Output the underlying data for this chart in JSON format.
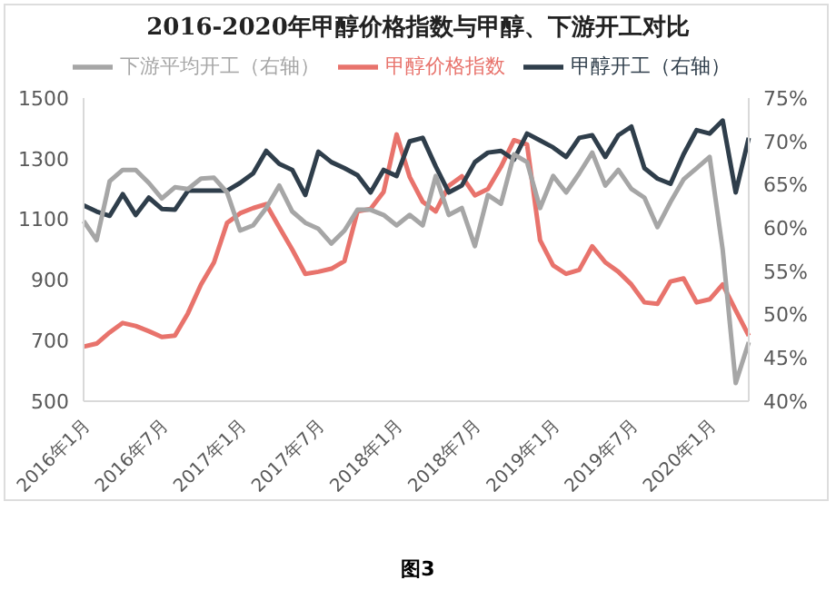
{
  "chart_data": {
    "type": "line",
    "title": "2016-2020年甲醇价格指数与甲醇、下游开工对比",
    "annotations": [
      "图3"
    ],
    "categories": [
      "2016年1月",
      null,
      null,
      null,
      null,
      null,
      "2016年7月",
      null,
      null,
      null,
      null,
      null,
      "2017年1月",
      null,
      null,
      null,
      null,
      null,
      "2017年7月",
      null,
      null,
      null,
      null,
      null,
      "2018年1月",
      null,
      null,
      null,
      null,
      null,
      "2018年7月",
      null,
      null,
      null,
      null,
      null,
      "2019年1月",
      null,
      null,
      null,
      null,
      null,
      "2019年7月",
      null,
      null,
      null,
      null,
      null,
      "2020年1月",
      null,
      null,
      null
    ],
    "series": [
      {
        "name": "甲醇价格指数",
        "color": "#e8736c",
        "values": [
          680,
          690,
          727,
          758,
          748,
          731,
          712,
          716,
          790,
          885,
          958,
          1088,
          1120,
          1137,
          1150,
          1074,
          1000,
          920,
          927,
          937,
          962,
          1126,
          1134,
          1190,
          1380,
          1240,
          1158,
          1126,
          1210,
          1242,
          1179,
          1200,
          1273,
          1361,
          1347,
          1031,
          948,
          920,
          933,
          1011,
          958,
          927,
          885,
          826,
          821,
          895,
          905,
          826,
          836,
          885,
          800,
          716
        ]
      },
      {
        "name": "甲醇开工（右轴）",
        "color": "#2f3e4b",
        "axis": "y2",
        "values": [
          62.6,
          61.9,
          61.4,
          63.9,
          61.5,
          63.5,
          62.2,
          62.1,
          64.3,
          64.3,
          64.3,
          64.3,
          65.2,
          66.3,
          68.9,
          67.4,
          66.7,
          63.8,
          68.8,
          67.6,
          66.9,
          66.1,
          64.1,
          66.7,
          66.0,
          70.0,
          70.4,
          67.1,
          64.1,
          64.9,
          67.6,
          68.7,
          68.9,
          67.9,
          70.9,
          70.1,
          69.3,
          68.2,
          70.4,
          70.7,
          68.2,
          70.7,
          71.7,
          66.9,
          65.7,
          65.1,
          68.5,
          71.3,
          70.9,
          72.4,
          64.1,
          70.4
        ]
      },
      {
        "name": "下游平均开工（右轴）",
        "color": "#a6a6a6",
        "axis": "y2",
        "values": [
          60.8,
          58.6,
          65.4,
          66.7,
          66.7,
          65.2,
          63.4,
          64.7,
          64.5,
          65.7,
          65.8,
          64.1,
          59.7,
          60.3,
          62.3,
          64.9,
          61.9,
          60.6,
          59.9,
          58.2,
          59.7,
          62.1,
          62.1,
          61.5,
          60.3,
          61.5,
          60.3,
          66.0,
          61.5,
          62.3,
          57.9,
          63.8,
          62.8,
          68.5,
          67.6,
          62.3,
          66.0,
          64.1,
          66.3,
          68.7,
          64.9,
          66.7,
          64.5,
          63.5,
          60.1,
          63.0,
          65.6,
          66.9,
          68.2,
          57.5,
          42.1,
          46.8
        ]
      }
    ],
    "ylim": [
      500,
      1500
    ],
    "yticks": [
      500,
      700,
      900,
      1100,
      1300,
      1500
    ],
    "y2lim": [
      40,
      75
    ],
    "y2ticks": [
      {
        "value": 40,
        "label": "40%"
      },
      {
        "value": 45,
        "label": "45%"
      },
      {
        "value": 50,
        "label": "50%"
      },
      {
        "value": 55,
        "label": "55%"
      },
      {
        "value": 60,
        "label": "60%"
      },
      {
        "value": 65,
        "label": "65%"
      },
      {
        "value": 70,
        "label": "70%"
      },
      {
        "value": 75,
        "label": "75%"
      }
    ],
    "legend": "top",
    "marker": "none",
    "line_style": "solid"
  }
}
